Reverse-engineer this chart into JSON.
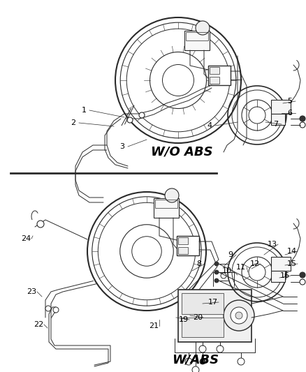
{
  "background_color": "#ffffff",
  "line_color": "#2a2a2a",
  "text_color": "#000000",
  "wo_abs_label": "W/O ABS",
  "w_abs_label": "W/ABS",
  "figsize": [
    4.38,
    5.33
  ],
  "dpi": 100
}
